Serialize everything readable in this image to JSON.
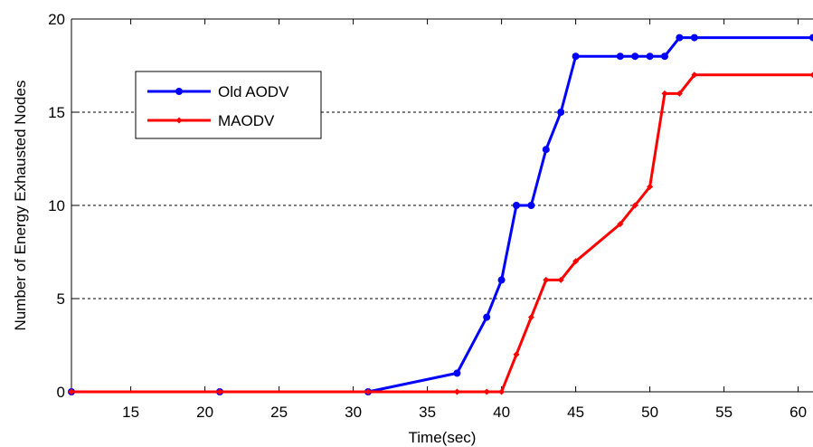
{
  "chart_data": {
    "type": "line",
    "title": "",
    "xlabel": "Time(sec)",
    "ylabel": "Number of Energy Exhausted Nodes",
    "xlim": [
      11,
      61
    ],
    "ylim": [
      0,
      20
    ],
    "xticks": [
      15,
      20,
      25,
      30,
      35,
      40,
      45,
      50,
      55,
      60
    ],
    "yticks": [
      0,
      5,
      10,
      15,
      20
    ],
    "grid": "horizontal dashed",
    "legend_position": "top-left",
    "series": [
      {
        "name": "Old AODV",
        "color": "#0000ff",
        "marker": "circle",
        "x": [
          11,
          21,
          31,
          37,
          39,
          40,
          41,
          42,
          43,
          44,
          45,
          48,
          49,
          50,
          51,
          52,
          53,
          61
        ],
        "y": [
          0,
          0,
          0,
          1,
          4,
          6,
          10,
          10,
          13,
          15,
          18,
          18,
          18,
          18,
          18,
          19,
          19,
          19
        ]
      },
      {
        "name": "MAODV",
        "color": "#ff0000",
        "marker": "diamond",
        "x": [
          11,
          21,
          31,
          37,
          39,
          40,
          41,
          42,
          43,
          44,
          45,
          48,
          49,
          50,
          51,
          52,
          53,
          61
        ],
        "y": [
          0,
          0,
          0,
          0,
          0,
          0,
          2,
          4,
          6,
          6,
          7,
          9,
          10,
          11,
          16,
          16,
          17,
          17
        ]
      }
    ]
  }
}
